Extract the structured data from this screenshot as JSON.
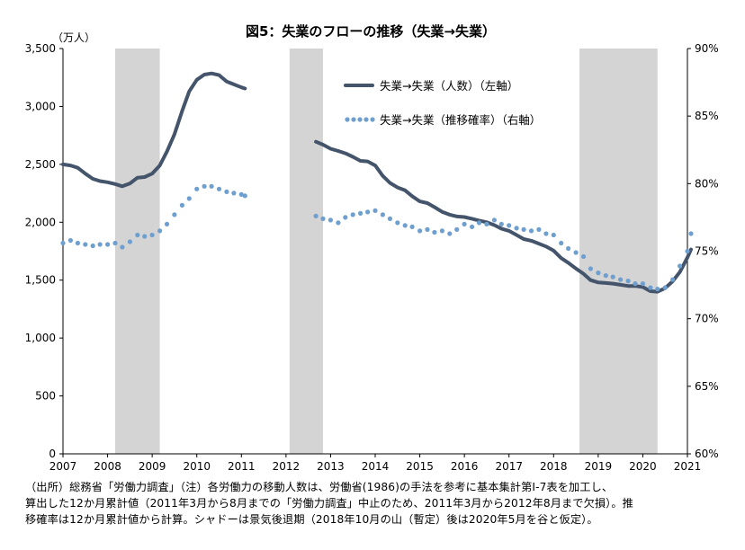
{
  "chart_data": {
    "type": "line",
    "title": "図5：失業のフローの推移（失業→失業）",
    "y_left_unit": "（万人）",
    "y_left_ticks": [
      "0",
      "500",
      "1,000",
      "1,500",
      "2,000",
      "2,500",
      "3,000",
      "3,500"
    ],
    "y_left_range": [
      0,
      3500
    ],
    "y_right_ticks": [
      "60%",
      "65%",
      "70%",
      "75%",
      "80%",
      "85%",
      "90%"
    ],
    "y_right_range": [
      60,
      90
    ],
    "x_range": [
      2007,
      2021
    ],
    "x_ticks": [
      "2007",
      "2008",
      "2009",
      "2010",
      "2011",
      "2012",
      "2013",
      "2014",
      "2015",
      "2016",
      "2017",
      "2018",
      "2019",
      "2020",
      "2021"
    ],
    "recessions": [
      [
        2008.17,
        2009.17
      ],
      [
        2012.08,
        2012.83
      ],
      [
        2018.58,
        2020.33
      ]
    ],
    "legend_position": "top-center",
    "grid": false,
    "colors": {
      "series1": "#44546a",
      "series2": "#6f9fcf",
      "shade": "#d4d4d4"
    },
    "series": [
      {
        "name": "失業→失業（人数）（左軸）",
        "axis": "left",
        "style": "solid",
        "segments": [
          [
            [
              2007.0,
              2500
            ],
            [
              2007.17,
              2490
            ],
            [
              2007.33,
              2470
            ],
            [
              2007.5,
              2420
            ],
            [
              2007.67,
              2375
            ],
            [
              2007.83,
              2355
            ],
            [
              2008.0,
              2345
            ],
            [
              2008.17,
              2330
            ],
            [
              2008.33,
              2310
            ],
            [
              2008.5,
              2335
            ],
            [
              2008.67,
              2385
            ],
            [
              2008.83,
              2390
            ],
            [
              2009.0,
              2420
            ],
            [
              2009.17,
              2490
            ],
            [
              2009.33,
              2610
            ],
            [
              2009.5,
              2760
            ],
            [
              2009.67,
              2960
            ],
            [
              2009.83,
              3130
            ],
            [
              2010.0,
              3230
            ],
            [
              2010.17,
              3275
            ],
            [
              2010.33,
              3285
            ],
            [
              2010.5,
              3270
            ],
            [
              2010.67,
              3215
            ],
            [
              2010.83,
              3190
            ],
            [
              2011.0,
              3165
            ],
            [
              2011.08,
              3155
            ]
          ],
          [
            [
              2012.67,
              2695
            ],
            [
              2012.83,
              2670
            ],
            [
              2013.0,
              2635
            ],
            [
              2013.17,
              2615
            ],
            [
              2013.33,
              2595
            ],
            [
              2013.5,
              2565
            ],
            [
              2013.67,
              2530
            ],
            [
              2013.83,
              2525
            ],
            [
              2014.0,
              2490
            ],
            [
              2014.17,
              2400
            ],
            [
              2014.33,
              2340
            ],
            [
              2014.5,
              2300
            ],
            [
              2014.67,
              2275
            ],
            [
              2014.83,
              2225
            ],
            [
              2015.0,
              2180
            ],
            [
              2015.17,
              2165
            ],
            [
              2015.33,
              2130
            ],
            [
              2015.5,
              2090
            ],
            [
              2015.67,
              2065
            ],
            [
              2015.83,
              2050
            ],
            [
              2016.0,
              2045
            ],
            [
              2016.17,
              2030
            ],
            [
              2016.33,
              2015
            ],
            [
              2016.5,
              2000
            ],
            [
              2016.67,
              1975
            ],
            [
              2016.83,
              1945
            ],
            [
              2017.0,
              1925
            ],
            [
              2017.17,
              1890
            ],
            [
              2017.33,
              1855
            ],
            [
              2017.5,
              1840
            ],
            [
              2017.67,
              1815
            ],
            [
              2017.83,
              1790
            ],
            [
              2018.0,
              1755
            ],
            [
              2018.17,
              1690
            ],
            [
              2018.33,
              1650
            ],
            [
              2018.5,
              1600
            ],
            [
              2018.67,
              1555
            ],
            [
              2018.83,
              1500
            ],
            [
              2019.0,
              1480
            ],
            [
              2019.17,
              1475
            ],
            [
              2019.33,
              1470
            ],
            [
              2019.5,
              1460
            ],
            [
              2019.67,
              1450
            ],
            [
              2019.83,
              1450
            ],
            [
              2020.0,
              1440
            ],
            [
              2020.17,
              1405
            ],
            [
              2020.33,
              1400
            ],
            [
              2020.5,
              1430
            ],
            [
              2020.67,
              1490
            ],
            [
              2020.83,
              1570
            ],
            [
              2021.0,
              1695
            ],
            [
              2021.08,
              1765
            ]
          ]
        ]
      },
      {
        "name": "失業→失業（推移確率）（右軸）",
        "axis": "right",
        "style": "dotted",
        "segments": [
          [
            [
              2007.0,
              75.6
            ],
            [
              2007.17,
              75.8
            ],
            [
              2007.33,
              75.6
            ],
            [
              2007.5,
              75.5
            ],
            [
              2007.67,
              75.4
            ],
            [
              2007.83,
              75.5
            ],
            [
              2008.0,
              75.5
            ],
            [
              2008.17,
              75.6
            ],
            [
              2008.33,
              75.3
            ],
            [
              2008.5,
              75.7
            ],
            [
              2008.67,
              76.2
            ],
            [
              2008.83,
              76.1
            ],
            [
              2009.0,
              76.2
            ],
            [
              2009.17,
              76.5
            ],
            [
              2009.33,
              77.0
            ],
            [
              2009.5,
              77.7
            ],
            [
              2009.67,
              78.4
            ],
            [
              2009.83,
              78.9
            ],
            [
              2010.0,
              79.6
            ],
            [
              2010.17,
              79.8
            ],
            [
              2010.33,
              79.8
            ],
            [
              2010.5,
              79.6
            ],
            [
              2010.67,
              79.4
            ],
            [
              2010.83,
              79.3
            ],
            [
              2011.0,
              79.2
            ],
            [
              2011.08,
              79.1
            ]
          ],
          [
            [
              2012.67,
              77.6
            ],
            [
              2012.83,
              77.4
            ],
            [
              2013.0,
              77.3
            ],
            [
              2013.17,
              77.1
            ],
            [
              2013.33,
              77.5
            ],
            [
              2013.5,
              77.7
            ],
            [
              2013.67,
              77.8
            ],
            [
              2013.83,
              77.9
            ],
            [
              2014.0,
              78.0
            ],
            [
              2014.17,
              77.7
            ],
            [
              2014.33,
              77.4
            ],
            [
              2014.5,
              77.1
            ],
            [
              2014.67,
              76.9
            ],
            [
              2014.83,
              76.8
            ],
            [
              2015.0,
              76.5
            ],
            [
              2015.17,
              76.6
            ],
            [
              2015.33,
              76.4
            ],
            [
              2015.5,
              76.5
            ],
            [
              2015.67,
              76.3
            ],
            [
              2015.83,
              76.6
            ],
            [
              2016.0,
              77.0
            ],
            [
              2016.17,
              76.8
            ],
            [
              2016.33,
              77.1
            ],
            [
              2016.5,
              77.0
            ],
            [
              2016.67,
              77.3
            ],
            [
              2016.83,
              77.0
            ],
            [
              2017.0,
              76.9
            ],
            [
              2017.17,
              76.7
            ],
            [
              2017.33,
              76.6
            ],
            [
              2017.5,
              76.5
            ],
            [
              2017.67,
              76.6
            ],
            [
              2017.83,
              76.3
            ],
            [
              2018.0,
              76.2
            ],
            [
              2018.17,
              75.6
            ],
            [
              2018.33,
              75.2
            ],
            [
              2018.5,
              74.9
            ],
            [
              2018.67,
              74.6
            ],
            [
              2018.83,
              73.7
            ],
            [
              2019.0,
              73.4
            ],
            [
              2019.17,
              73.2
            ],
            [
              2019.33,
              73.1
            ],
            [
              2019.5,
              72.9
            ],
            [
              2019.67,
              72.8
            ],
            [
              2019.83,
              72.6
            ],
            [
              2020.0,
              72.6
            ],
            [
              2020.17,
              72.3
            ],
            [
              2020.33,
              72.2
            ],
            [
              2020.5,
              72.3
            ],
            [
              2020.67,
              72.9
            ],
            [
              2020.83,
              73.9
            ],
            [
              2021.0,
              75.0
            ],
            [
              2021.08,
              76.3
            ]
          ]
        ]
      }
    ]
  },
  "notes": "（出所）総務省「労働力調査」（注）各労働力の移動人数は、労働省(1986)の手法を参考に基本集計第Ⅰ-7表を加工し、\n算出した12か月累計値（2011年3月から8月までの「労働力調査」中止のため、2011年3月から2012年8月まで欠損）。推\n移確率は12か月累計値から計算。シャドーは景気後退期（2018年10月の山（暫定）後は2020年5月を谷と仮定）。"
}
